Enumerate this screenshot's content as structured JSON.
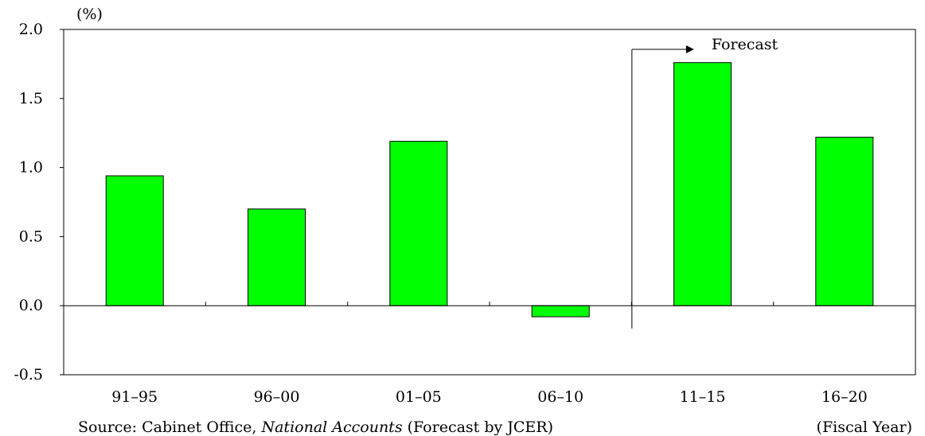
{
  "chart_data": {
    "type": "bar",
    "categories": [
      "91–95",
      "96–00",
      "01–05",
      "06–10",
      "11–15",
      "16–20"
    ],
    "values": [
      0.94,
      0.7,
      1.19,
      -0.08,
      1.76,
      1.22
    ],
    "y_unit": "(%)",
    "ylim": [
      -0.5,
      2.0
    ],
    "y_ticks": [
      "2.0",
      "1.5",
      "1.0",
      "0.5",
      "0.0",
      "-0.5"
    ],
    "grid": false,
    "bar_color": "#00ff00",
    "bar_edge_color": "#000000",
    "annotation": {
      "text": "Forecast",
      "starts_before_category": "11–15"
    },
    "x_unit": "(Fiscal Year)"
  },
  "source": {
    "prefix": "Source: Cabinet Office, ",
    "publication": "National Accounts",
    "suffix": " (Forecast by JCER)"
  }
}
